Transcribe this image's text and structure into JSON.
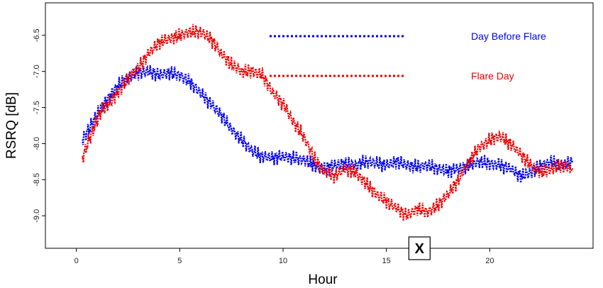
{
  "chart_data": {
    "type": "line",
    "title": "",
    "xlabel": "Hour",
    "ylabel": "RSRQ [dB]",
    "xlim": [
      -1.5,
      25
    ],
    "ylim": [
      -9.45,
      -6.05
    ],
    "xticks": [
      0,
      5,
      10,
      15,
      20
    ],
    "yticks": [
      -6.5,
      -7.0,
      -7.5,
      -8.0,
      -8.5,
      -9.0
    ],
    "ytick_labels": [
      "-6.5",
      "-7.0",
      "-7.5",
      "-8.0",
      "-8.5",
      "-9.0"
    ],
    "grid": false,
    "legend": {
      "placement": "top-right",
      "style": "dotted-line"
    },
    "series": [
      {
        "name": "Day Before Flare",
        "color": "#0000ee",
        "x": [
          0.3,
          0.6,
          0.9,
          1.2,
          1.6,
          2.0,
          2.5,
          3.0,
          3.5,
          4.0,
          4.5,
          5.0,
          5.5,
          6.0,
          6.5,
          7.0,
          7.5,
          8.0,
          8.5,
          9.0,
          9.5,
          10.0,
          10.5,
          11.0,
          11.5,
          12.0,
          12.5,
          13.0,
          13.5,
          14.0,
          14.5,
          15.0,
          15.5,
          16.0,
          16.5,
          17.0,
          17.5,
          18.0,
          18.5,
          19.0,
          19.5,
          20.0,
          20.5,
          21.0,
          21.5,
          22.0,
          22.5,
          23.0,
          23.5,
          24.0
        ],
        "y": [
          -7.95,
          -7.8,
          -7.65,
          -7.5,
          -7.35,
          -7.2,
          -7.08,
          -7.02,
          -7.0,
          -7.05,
          -7.02,
          -7.05,
          -7.15,
          -7.3,
          -7.45,
          -7.6,
          -7.8,
          -7.95,
          -8.1,
          -8.18,
          -8.2,
          -8.18,
          -8.2,
          -8.22,
          -8.3,
          -8.35,
          -8.3,
          -8.28,
          -8.3,
          -8.25,
          -8.27,
          -8.3,
          -8.25,
          -8.3,
          -8.32,
          -8.3,
          -8.35,
          -8.38,
          -8.35,
          -8.3,
          -8.25,
          -8.28,
          -8.3,
          -8.35,
          -8.45,
          -8.4,
          -8.3,
          -8.25,
          -8.3,
          -8.25
        ]
      },
      {
        "name": "Flare Day",
        "color": "#ee0000",
        "x": [
          0.3,
          0.6,
          0.9,
          1.2,
          1.6,
          2.0,
          2.5,
          3.0,
          3.5,
          4.0,
          4.5,
          5.0,
          5.5,
          6.0,
          6.5,
          7.0,
          7.5,
          8.0,
          8.5,
          9.0,
          9.5,
          10.0,
          10.5,
          11.0,
          11.5,
          12.0,
          12.5,
          13.0,
          13.5,
          14.0,
          14.5,
          15.0,
          15.5,
          16.0,
          16.5,
          17.0,
          17.5,
          18.0,
          18.5,
          19.0,
          19.5,
          20.0,
          20.5,
          21.0,
          21.5,
          22.0,
          22.5,
          23.0,
          23.5,
          24.0
        ],
        "y": [
          -8.2,
          -7.95,
          -7.75,
          -7.55,
          -7.45,
          -7.3,
          -7.1,
          -6.95,
          -6.75,
          -6.6,
          -6.55,
          -6.5,
          -6.45,
          -6.45,
          -6.55,
          -6.75,
          -6.9,
          -7.0,
          -7.0,
          -7.05,
          -7.3,
          -7.45,
          -7.7,
          -7.9,
          -8.2,
          -8.4,
          -8.45,
          -8.35,
          -8.4,
          -8.55,
          -8.7,
          -8.8,
          -8.9,
          -9.0,
          -8.9,
          -8.95,
          -8.85,
          -8.7,
          -8.5,
          -8.25,
          -8.05,
          -7.95,
          -7.9,
          -8.0,
          -8.15,
          -8.3,
          -8.4,
          -8.35,
          -8.3,
          -8.35
        ]
      }
    ],
    "annotation": {
      "text": "X",
      "x": 16.6,
      "y": -9.45
    }
  }
}
